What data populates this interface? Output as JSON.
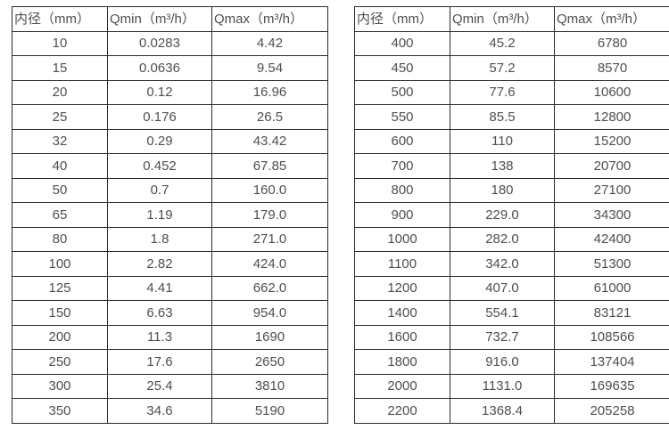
{
  "colors": {
    "background": "#ffffff",
    "border": "#2b2b2b",
    "text": "#4f4f4f"
  },
  "chart_data": [
    {
      "type": "table",
      "name": "small-diameter-flow-rates",
      "columns": [
        "内径（mm）",
        "Qmin（m³/h）",
        "Qmax（m³/h）"
      ],
      "rows": [
        [
          "10",
          "0.0283",
          "4.42"
        ],
        [
          "15",
          "0.0636",
          "9.54"
        ],
        [
          "20",
          "0.12",
          "16.96"
        ],
        [
          "25",
          "0.176",
          "26.5"
        ],
        [
          "32",
          "0.29",
          "43.42"
        ],
        [
          "40",
          "0.452",
          "67.85"
        ],
        [
          "50",
          "0.7",
          "160.0"
        ],
        [
          "65",
          "1.19",
          "179.0"
        ],
        [
          "80",
          "1.8",
          "271.0"
        ],
        [
          "100",
          "2.82",
          "424.0"
        ],
        [
          "125",
          "4.41",
          "662.0"
        ],
        [
          "150",
          "6.63",
          "954.0"
        ],
        [
          "200",
          "11.3",
          "1690"
        ],
        [
          "250",
          "17.6",
          "2650"
        ],
        [
          "300",
          "25.4",
          "3810"
        ],
        [
          "350",
          "34.6",
          "5190"
        ]
      ]
    },
    {
      "type": "table",
      "name": "large-diameter-flow-rates",
      "columns": [
        "内径（mm）",
        "Qmin（m³/h）",
        "Qmax（m³/h）"
      ],
      "rows": [
        [
          "400",
          "45.2",
          "6780"
        ],
        [
          "450",
          "57.2",
          "8570"
        ],
        [
          "500",
          "77.6",
          "10600"
        ],
        [
          "550",
          "85.5",
          "12800"
        ],
        [
          "600",
          "110",
          "15200"
        ],
        [
          "700",
          "138",
          "20700"
        ],
        [
          "800",
          "180",
          "27100"
        ],
        [
          "900",
          "229.0",
          "34300"
        ],
        [
          "1000",
          "282.0",
          "42400"
        ],
        [
          "1100",
          "342.0",
          "51300"
        ],
        [
          "1200",
          "407.0",
          "61000"
        ],
        [
          "1400",
          "554.1",
          "83121"
        ],
        [
          "1600",
          "732.7",
          "108566"
        ],
        [
          "1800",
          "916.0",
          "137404"
        ],
        [
          "2000",
          "1131.0",
          "169635"
        ],
        [
          "2200",
          "1368.4",
          "205258"
        ]
      ]
    }
  ]
}
